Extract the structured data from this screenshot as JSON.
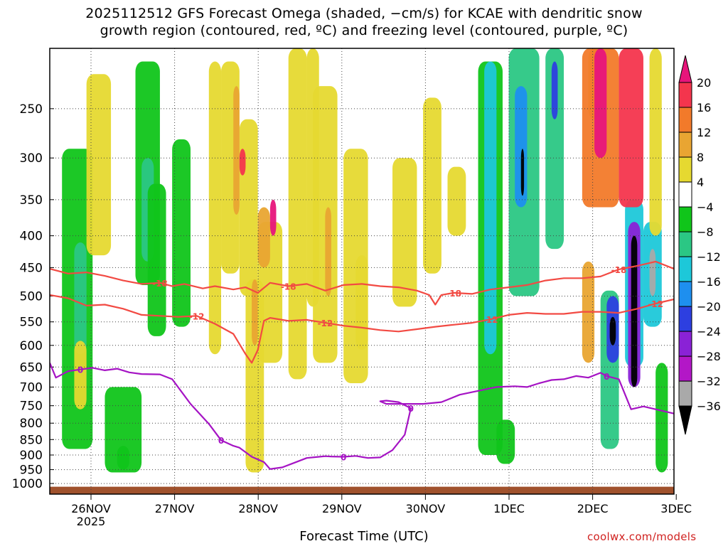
{
  "title_line1": "2025112512 GFS Forecast Omega (shaded, −cm/s) for KCAE with dendritic snow",
  "title_line2": "growth region (contoured, red, ºC) and freezing level (contoured, purple, ºC)",
  "credit": "coolwx.com/models",
  "chart_data": {
    "type": "heatmap",
    "title": "2025112512 GFS Forecast Omega (shaded, −cm/s) for KCAE with dendritic snow growth region (contoured, red, ºC) and freezing level (contoured, purple, ºC)",
    "xlabel": "Forecast Time (UTC)",
    "ylabel": "",
    "y_scale": "log-pressure",
    "y_inverted": true,
    "ylim_hPa": [
      1000,
      200
    ],
    "xlim_hours_utc": [
      "2025-11-25 12Z",
      "2025-12-03 00Z"
    ],
    "x_ticks": [
      {
        "label": "26NOV",
        "sub": "2025"
      },
      {
        "label": "27NOV"
      },
      {
        "label": "28NOV"
      },
      {
        "label": "29NOV"
      },
      {
        "label": "30NOV"
      },
      {
        "label": "1DEC"
      },
      {
        "label": "2DEC"
      },
      {
        "label": "3DEC"
      }
    ],
    "y_ticks": [
      250,
      300,
      350,
      400,
      450,
      500,
      550,
      600,
      650,
      700,
      750,
      800,
      850,
      900,
      950,
      1000
    ],
    "grid": true,
    "colorbar": {
      "placement": "right",
      "labels": [
        20,
        16,
        12,
        8,
        4,
        -4,
        -8,
        -12,
        -16,
        -20,
        -24,
        -28,
        -32,
        -36
      ],
      "bins": [
        {
          "range": "> 20",
          "color": "#e7157b"
        },
        {
          "range": "16 to 20",
          "color": "#f4354d"
        },
        {
          "range": "12 to 16",
          "color": "#f27a2a"
        },
        {
          "range": "8 to 12",
          "color": "#e9a532"
        },
        {
          "range": "4 to 8",
          "color": "#e6d930"
        },
        {
          "range": "-4 to 4",
          "color": "#ffffff"
        },
        {
          "range": "-8 to -4",
          "color": "#10c51a"
        },
        {
          "range": "-12 to -8",
          "color": "#2bc784"
        },
        {
          "range": "-16 to -12",
          "color": "#1dc8d9"
        },
        {
          "range": "-20 to -16",
          "color": "#1e8fef"
        },
        {
          "range": "-24 to -20",
          "color": "#2d3fe0"
        },
        {
          "range": "-28 to -24",
          "color": "#8a22d6"
        },
        {
          "range": "-32 to -28",
          "color": "#b317c7"
        },
        {
          "range": "-36 to -32",
          "color": "#a9a9a9"
        },
        {
          "range": "< -36",
          "color": "#000000"
        }
      ]
    },
    "omega_cells": [
      {
        "t": [
          4,
          14
        ],
        "p": [
          880,
          290
        ],
        "v": -6
      },
      {
        "t": [
          8,
          12
        ],
        "p": [
          620,
          410
        ],
        "v": -10
      },
      {
        "t": [
          18,
          30
        ],
        "p": [
          960,
          700
        ],
        "v": -6
      },
      {
        "t": [
          22,
          26
        ],
        "p": [
          950,
          870
        ],
        "v": -6
      },
      {
        "t": [
          28,
          36
        ],
        "p": [
          480,
          210
        ],
        "v": -6
      },
      {
        "t": [
          30,
          34
        ],
        "p": [
          440,
          300
        ],
        "v": -10
      },
      {
        "t": [
          32,
          38
        ],
        "p": [
          580,
          330
        ],
        "v": -6
      },
      {
        "t": [
          40,
          46
        ],
        "p": [
          560,
          280
        ],
        "v": -6
      },
      {
        "t": [
          8,
          12
        ],
        "p": [
          760,
          590
        ],
        "v": 6
      },
      {
        "t": [
          12,
          20
        ],
        "p": [
          430,
          220
        ],
        "v": 6
      },
      {
        "t": [
          52,
          56
        ],
        "p": [
          620,
          210
        ],
        "v": 6
      },
      {
        "t": [
          56,
          62
        ],
        "p": [
          460,
          210
        ],
        "v": 6
      },
      {
        "t": [
          62,
          68
        ],
        "p": [
          500,
          260
        ],
        "v": 6
      },
      {
        "t": [
          60,
          62
        ],
        "p": [
          370,
          230
        ],
        "v": 10
      },
      {
        "t": [
          62,
          64
        ],
        "p": [
          320,
          290
        ],
        "v": 18
      },
      {
        "t": [
          64,
          70
        ],
        "p": [
          960,
          470
        ],
        "v": 6
      },
      {
        "t": [
          66,
          68
        ],
        "p": [
          600,
          470
        ],
        "v": 10
      },
      {
        "t": [
          68,
          76
        ],
        "p": [
          640,
          380
        ],
        "v": 6
      },
      {
        "t": [
          68,
          72
        ],
        "p": [
          450,
          360
        ],
        "v": 10
      },
      {
        "t": [
          72,
          74
        ],
        "p": [
          400,
          350
        ],
        "v": 22
      },
      {
        "t": [
          78,
          84
        ],
        "p": [
          680,
          200
        ],
        "v": 6
      },
      {
        "t": [
          84,
          88
        ],
        "p": [
          520,
          200
        ],
        "v": 6
      },
      {
        "t": [
          86,
          94
        ],
        "p": [
          640,
          230
        ],
        "v": 6
      },
      {
        "t": [
          90,
          92
        ],
        "p": [
          500,
          360
        ],
        "v": 10
      },
      {
        "t": [
          96,
          104
        ],
        "p": [
          690,
          290
        ],
        "v": 6
      },
      {
        "t": [
          100,
          104
        ],
        "p": [
          610,
          430
        ],
        "v": 6
      },
      {
        "t": [
          112,
          120
        ],
        "p": [
          520,
          300
        ],
        "v": 6
      },
      {
        "t": [
          122,
          128
        ],
        "p": [
          460,
          240
        ],
        "v": 6
      },
      {
        "t": [
          130,
          136
        ],
        "p": [
          400,
          310
        ],
        "v": 6
      },
      {
        "t": [
          140,
          148
        ],
        "p": [
          900,
          210
        ],
        "v": -8
      },
      {
        "t": [
          142,
          146
        ],
        "p": [
          620,
          210
        ],
        "v": -14
      },
      {
        "t": [
          150,
          160
        ],
        "p": [
          500,
          200
        ],
        "v": -10
      },
      {
        "t": [
          152,
          156
        ],
        "p": [
          360,
          230
        ],
        "v": -18
      },
      {
        "t": [
          154,
          155
        ],
        "p": [
          345,
          290
        ],
        "v": -38
      },
      {
        "t": [
          162,
          168
        ],
        "p": [
          420,
          200
        ],
        "v": -12
      },
      {
        "t": [
          164,
          166
        ],
        "p": [
          260,
          210
        ],
        "v": -22
      },
      {
        "t": [
          146,
          152
        ],
        "p": [
          930,
          790
        ],
        "v": -8
      },
      {
        "t": [
          176,
          180
        ],
        "p": [
          260,
          200
        ],
        "v": 6
      },
      {
        "t": [
          174,
          178
        ],
        "p": [
          640,
          440
        ],
        "v": 10
      },
      {
        "t": [
          180,
          186
        ],
        "p": [
          880,
          490
        ],
        "v": -12
      },
      {
        "t": [
          182,
          186
        ],
        "p": [
          640,
          500
        ],
        "v": -22
      },
      {
        "t": [
          183,
          185
        ],
        "p": [
          600,
          540
        ],
        "v": -40
      },
      {
        "t": [
          174,
          186
        ],
        "p": [
          360,
          200
        ],
        "v": 16
      },
      {
        "t": [
          178,
          182
        ],
        "p": [
          300,
          200
        ],
        "v": 22
      },
      {
        "t": [
          188,
          194
        ],
        "p": [
          650,
          350
        ],
        "v": -16
      },
      {
        "t": [
          189,
          193
        ],
        "p": [
          700,
          380
        ],
        "v": -28
      },
      {
        "t": [
          190,
          192
        ],
        "p": [
          700,
          400
        ],
        "v": -40
      },
      {
        "t": [
          194,
          200
        ],
        "p": [
          560,
          380
        ],
        "v": -14
      },
      {
        "t": [
          196,
          198
        ],
        "p": [
          500,
          420
        ],
        "v": -36
      },
      {
        "t": [
          186,
          194
        ],
        "p": [
          360,
          200
        ],
        "v": 18
      },
      {
        "t": [
          196,
          200
        ],
        "p": [
          400,
          200
        ],
        "v": 8
      },
      {
        "t": [
          198,
          202
        ],
        "p": [
          960,
          640
        ],
        "v": -8
      }
    ],
    "contours": [
      {
        "label": "-18",
        "color": "#f24a43",
        "variable": "temperature",
        "x_hours": [
          0,
          6,
          12,
          18,
          24,
          30,
          36,
          40,
          44,
          50,
          54,
          60,
          64,
          68,
          72,
          78,
          84,
          90,
          96,
          102,
          108,
          114,
          120,
          124,
          126,
          128,
          132,
          138,
          144,
          150,
          156,
          162,
          168,
          174,
          180,
          186,
          192,
          198,
          204
        ],
        "y_hPa": [
          452,
          460,
          458,
          464,
          472,
          478,
          476,
          482,
          478,
          486,
          482,
          488,
          484,
          494,
          476,
          482,
          478,
          490,
          480,
          478,
          482,
          484,
          490,
          498,
          516,
          498,
          494,
          496,
          488,
          484,
          480,
          472,
          468,
          468,
          465,
          453,
          447,
          440,
          452
        ]
      },
      {
        "label": "-12",
        "color": "#f24a43",
        "variable": "temperature",
        "x_hours": [
          0,
          6,
          12,
          18,
          24,
          30,
          36,
          42,
          48,
          54,
          60,
          64,
          66,
          68,
          70,
          72,
          74,
          78,
          84,
          90,
          96,
          102,
          108,
          114,
          120,
          126,
          132,
          138,
          144,
          150,
          156,
          162,
          168,
          174,
          180,
          186,
          192,
          198,
          204
        ],
        "y_hPa": [
          498,
          504,
          518,
          516,
          524,
          536,
          538,
          540,
          538,
          554,
          575,
          620,
          640,
          610,
          548,
          542,
          544,
          548,
          546,
          552,
          558,
          562,
          567,
          570,
          565,
          560,
          556,
          552,
          545,
          536,
          532,
          534,
          534,
          530,
          530,
          532,
          524,
          514,
          506
        ]
      },
      {
        "label": "0",
        "color": "#a514c4",
        "variable": "temperature",
        "x_hours": [
          0,
          2,
          6,
          10,
          14,
          18,
          22,
          26,
          30,
          36,
          40,
          46,
          52,
          56,
          60,
          62,
          66,
          70,
          72,
          76,
          80,
          84,
          88,
          90,
          92,
          96,
          100,
          104,
          108,
          112,
          116,
          118,
          114,
          110,
          108,
          110,
          116,
          122,
          128,
          134,
          140,
          146,
          152,
          156,
          160,
          164,
          168,
          172,
          176,
          180,
          182,
          186,
          190,
          194,
          198,
          202,
          204
        ],
        "y_hPa": [
          640,
          676,
          660,
          656,
          652,
          658,
          654,
          663,
          667,
          668,
          680,
          745,
          802,
          852,
          870,
          876,
          906,
          924,
          948,
          942,
          926,
          910,
          906,
          904,
          905,
          906,
          903,
          910,
          908,
          884,
          835,
          757,
          740,
          736,
          738,
          745,
          745,
          745,
          740,
          720,
          710,
          700,
          698,
          700,
          690,
          682,
          680,
          672,
          676,
          664,
          672,
          680,
          760,
          752,
          760,
          768,
          772
        ]
      }
    ],
    "contour_label_positions_note": "labels -18, -12, 0 drawn along lines"
  }
}
